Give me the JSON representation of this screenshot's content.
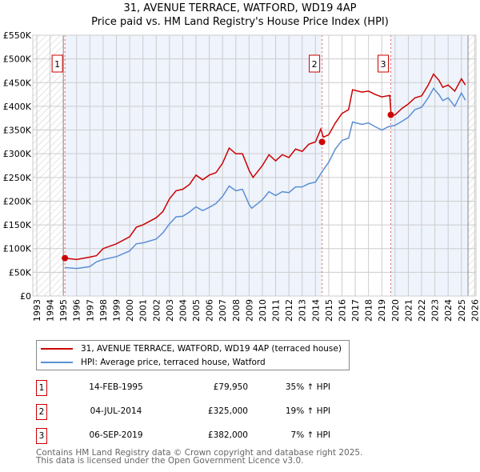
{
  "title_line1": "31, AVENUE TERRACE, WATFORD, WD19 4AP",
  "title_line2": "Price paid vs. HM Land Registry's House Price Index (HPI)",
  "legend": [
    {
      "label": "31, AVENUE TERRACE, WATFORD, WD19 4AP (terraced house)",
      "color": "#cc0000"
    },
    {
      "label": "HPI: Average price, terraced house, Watford",
      "color": "#5b8fd4"
    }
  ],
  "sales": [
    {
      "num": "1",
      "date": "14-FEB-1995",
      "price": "£79,950",
      "hpi": "35% ↑ HPI"
    },
    {
      "num": "2",
      "date": "04-JUL-2014",
      "price": "£325,000",
      "hpi": "19% ↑ HPI"
    },
    {
      "num": "3",
      "date": "06-SEP-2019",
      "price": "£382,000",
      "hpi": "7% ↑ HPI"
    }
  ],
  "footer_line1": "Contains HM Land Registry data © Crown copyright and database right 2025.",
  "footer_line2": "This data is licensed under the Open Government Licence v3.0.",
  "chart_data": {
    "type": "line",
    "title": "31, AVENUE TERRACE, WATFORD, WD19 4AP — Price paid vs. HM Land Registry's House Price Index (HPI)",
    "xlim": [
      1992.7,
      2026.1
    ],
    "ylim": [
      0,
      550000
    ],
    "xticks": [
      "1993",
      "1994",
      "1995",
      "1996",
      "1997",
      "1998",
      "1999",
      "2000",
      "2001",
      "2002",
      "2003",
      "2004",
      "2005",
      "2006",
      "2007",
      "2008",
      "2009",
      "2010",
      "2011",
      "2012",
      "2013",
      "2014",
      "2015",
      "2016",
      "2017",
      "2018",
      "2019",
      "2020",
      "2021",
      "2022",
      "2023",
      "2024",
      "2025",
      "2026"
    ],
    "yticks": [
      {
        "v": 0,
        "l": "£0"
      },
      {
        "v": 50000,
        "l": "£50K"
      },
      {
        "v": 100000,
        "l": "£100K"
      },
      {
        "v": 150000,
        "l": "£150K"
      },
      {
        "v": 200000,
        "l": "£200K"
      },
      {
        "v": 250000,
        "l": "£250K"
      },
      {
        "v": 300000,
        "l": "£300K"
      },
      {
        "v": 350000,
        "l": "£350K"
      },
      {
        "v": 400000,
        "l": "£400K"
      },
      {
        "v": 450000,
        "l": "£450K"
      },
      {
        "v": 500000,
        "l": "£500K"
      },
      {
        "v": 550000,
        "l": "£550K"
      }
    ],
    "grid": true,
    "hatched_before": 1995.0,
    "hatched_after": 2025.5,
    "series": [
      {
        "name": "31, AVENUE TERRACE, WATFORD, WD19 4AP (terraced house)",
        "color": "#cc0000",
        "x": [
          1995.12,
          1996,
          1997,
          1997.5,
          1998,
          1999,
          2000,
          2000.5,
          2001,
          2002,
          2002.5,
          2003,
          2003.5,
          2004,
          2004.5,
          2005,
          2005.5,
          2006,
          2006.5,
          2007,
          2007.5,
          2008,
          2008.5,
          2009,
          2009.3,
          2010,
          2010.5,
          2011,
          2011.5,
          2012,
          2012.5,
          2013,
          2013.5,
          2014,
          2014.4,
          2014.6,
          2015,
          2015.5,
          2016,
          2016.5,
          2016.8,
          2017.5,
          2018,
          2018.5,
          2019,
          2019.6,
          2019.7,
          2020,
          2020.5,
          2021,
          2021.5,
          2022,
          2022.5,
          2022.9,
          2023.3,
          2023.6,
          2024,
          2024.5,
          2025,
          2025.3
        ],
        "y": [
          80000,
          77000,
          82000,
          85000,
          100000,
          110000,
          125000,
          145000,
          150000,
          165000,
          178000,
          205000,
          222000,
          225000,
          235000,
          255000,
          245000,
          255000,
          260000,
          280000,
          312000,
          300000,
          300000,
          265000,
          250000,
          275000,
          298000,
          285000,
          298000,
          292000,
          310000,
          305000,
          320000,
          325000,
          352000,
          335000,
          340000,
          365000,
          385000,
          393000,
          435000,
          430000,
          432000,
          425000,
          420000,
          423000,
          382000,
          382000,
          395000,
          405000,
          418000,
          422000,
          445000,
          468000,
          455000,
          440000,
          445000,
          432000,
          458000,
          445000
        ]
      },
      {
        "name": "HPI: Average price, terraced house, Watford",
        "color": "#5b8fd4",
        "x": [
          1995.12,
          1996,
          1997,
          1997.5,
          1998,
          1999,
          2000,
          2000.5,
          2001,
          2002,
          2002.5,
          2003,
          2003.5,
          2004,
          2004.5,
          2005,
          2005.5,
          2006,
          2006.5,
          2007,
          2007.5,
          2008,
          2008.5,
          2009,
          2009.2,
          2010,
          2010.5,
          2011,
          2011.5,
          2012,
          2012.5,
          2013,
          2013.5,
          2014,
          2014.5,
          2015,
          2015.5,
          2016,
          2016.5,
          2016.8,
          2017.5,
          2018,
          2018.5,
          2019,
          2019.5,
          2020,
          2020.5,
          2021,
          2021.5,
          2022,
          2022.5,
          2022.9,
          2023.3,
          2023.6,
          2024,
          2024.5,
          2025,
          2025.3
        ],
        "y": [
          60000,
          58000,
          62000,
          72000,
          77000,
          83000,
          95000,
          110000,
          112000,
          120000,
          133000,
          152000,
          167000,
          168000,
          177000,
          188000,
          180000,
          187000,
          195000,
          210000,
          232000,
          222000,
          225000,
          193000,
          185000,
          203000,
          220000,
          212000,
          220000,
          218000,
          230000,
          230000,
          237000,
          240000,
          262000,
          282000,
          310000,
          328000,
          333000,
          367000,
          362000,
          365000,
          357000,
          350000,
          357000,
          360000,
          368000,
          377000,
          393000,
          398000,
          418000,
          438000,
          425000,
          412000,
          418000,
          400000,
          428000,
          413000
        ]
      }
    ],
    "sale_points": [
      {
        "label": "1",
        "x": 1995.12,
        "y": 79950
      },
      {
        "label": "2",
        "x": 2014.5,
        "y": 325000
      },
      {
        "label": "3",
        "x": 2019.68,
        "y": 382000
      }
    ]
  }
}
